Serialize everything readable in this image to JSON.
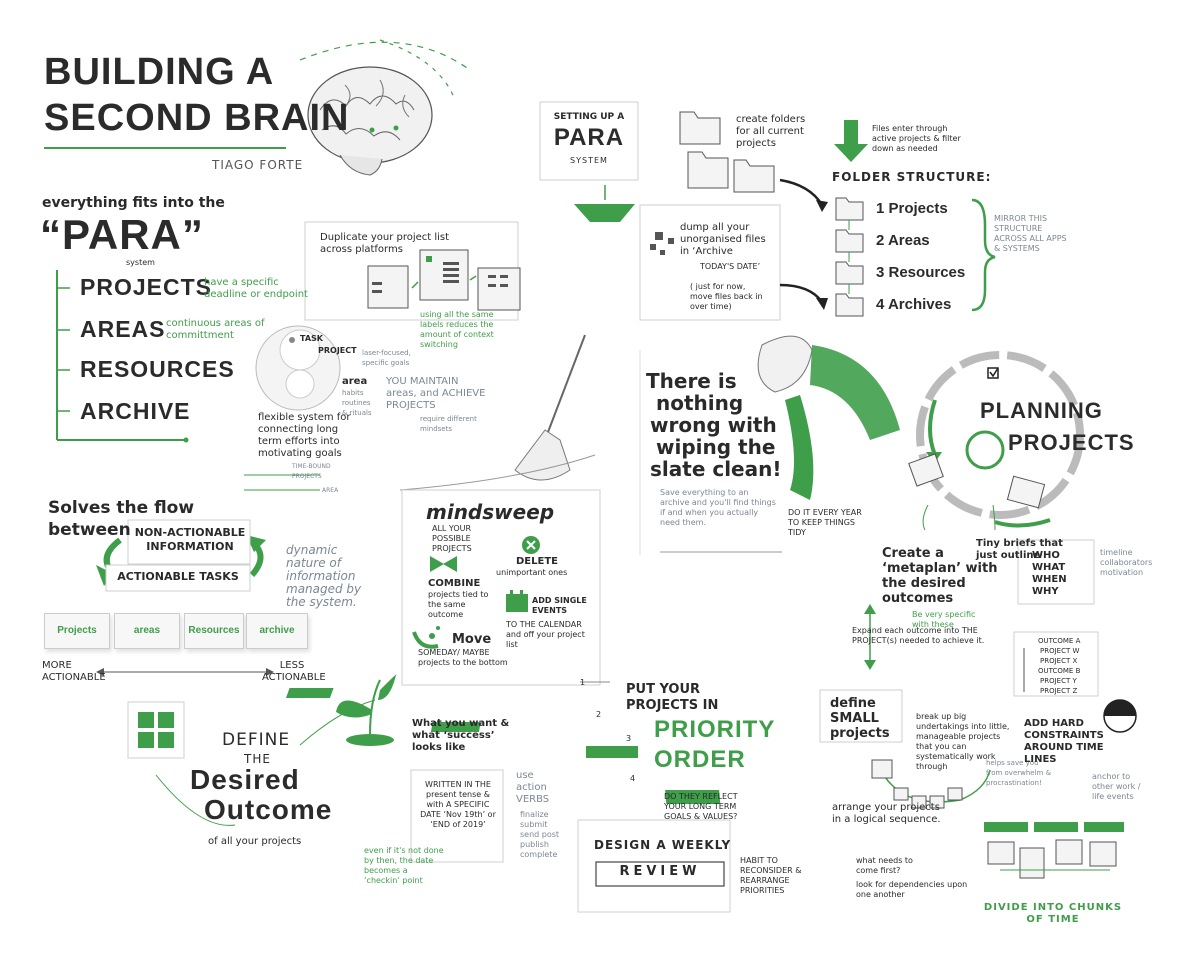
{
  "header": {
    "title_line1": "BUILDING A",
    "title_line2": "SECOND BRAIN",
    "author": "TIAGO FORTE"
  },
  "para": {
    "intro": "everything fits into the",
    "acronym": "“PARA”",
    "system_label": "system",
    "items": [
      {
        "label": "PROJECTS",
        "note": "have a specific deadline or endpoint"
      },
      {
        "label": "AREAS",
        "note": "continuous areas of committment"
      },
      {
        "label": "RESOURCES",
        "note": ""
      },
      {
        "label": "ARCHIVE",
        "note": ""
      }
    ]
  },
  "duplicate": {
    "text": "Duplicate your project list across platforms",
    "note": "using all the same labels reduces the amount of context switching"
  },
  "task_diagram": {
    "task": "TASK",
    "project": "PROJECT",
    "project_note": "laser-focused, specific goals",
    "area": "area",
    "area_note": "habits routines & rituals",
    "maintain": "YOU MAINTAIN areas, and ACHIEVE PROJECTS",
    "maintain_note": "require different mindsets",
    "flexible": "flexible system for connecting long term efforts into motivating goals",
    "time_bound": "TIME-BOUND PROJECTS",
    "area_small": "AREA"
  },
  "flow": {
    "heading_line1": "Solves the flow",
    "heading_line2": "between",
    "non_actionable": "NON-ACTIONABLE INFORMATION",
    "actionable": "ACTIONABLE TASKS",
    "dynamic": "dynamic nature of information managed by the system.",
    "buttons": [
      "Projects",
      "areas",
      "Resources",
      "archive"
    ],
    "more": "MORE ACTIONABLE",
    "less": "LESS ACTIONABLE"
  },
  "mindsweep": {
    "title": "mindsweep",
    "subtitle": "ALL YOUR POSSIBLE PROJECTS",
    "delete": "DELETE",
    "delete_note": "unimportant ones",
    "combine": "COMBINE",
    "combine_note": "projects tied to the same outcome",
    "add": "ADD SINGLE EVENTS",
    "add_note": "TO THE CALENDAR and off your project list",
    "move": "Move",
    "move_note": "SOMEDAY/ MAYBE projects to the bottom"
  },
  "para_setup": {
    "line1": "SETTING UP A",
    "line2": "PARA",
    "line3": "SYSTEM",
    "create_folders": "create folders for all current projects",
    "files_enter": "Files enter through active projects & filter down as needed",
    "folder_structure": "FOLDER STRUCTURE:",
    "folders": [
      "1 Projects",
      "2 Areas",
      "3 Resources",
      "4 Archives"
    ],
    "mirror": "MIRROR THIS STRUCTURE ACROSS ALL APPS & SYSTEMS",
    "dump": "dump all your unorganised files in ‘Archive",
    "dump_date": "TODAY'S DATE’",
    "just_for_now": "( just for now, move files back in over time)"
  },
  "slate": {
    "line1": "There is",
    "line2": "nothing",
    "line3": "wrong with",
    "line4": "wiping the",
    "line5": "slate clean!",
    "note": "Save everything to an archive and you'll find things if and when you actually need them.",
    "yearly": "DO IT EVERY YEAR TO KEEP THINGS TIDY"
  },
  "planning": {
    "line1": "PLANNING",
    "line2": "PROJECTS",
    "metaplan": "Create a ‘metaplan’ with the desired outcomes",
    "metaplan_note": "Be very specific with these",
    "briefs": "Tiny briefs that just outline",
    "who": "WHO WHAT WHEN WHY",
    "timeline": "timeline collaborators motivation",
    "expand": "Expand each outcome into THE PROJECT(s) needed to achieve it.",
    "outcome_a": "OUTCOME A",
    "proj_w": "PROJECT W",
    "proj_x": "PROJECT X",
    "outcome_b": "OUTCOME B",
    "proj_y": "PROJECT Y",
    "proj_z": "PROJECT Z",
    "define_small": "define SMALL projects",
    "break_up": "break up big undertakings into little, manageable projects that you can systematically work through",
    "helps": "helps save you from overwhelm & procrastination!",
    "constraints": "ADD HARD CONSTRAINTS AROUND TIME LINES",
    "anchor": "anchor to other work / life events",
    "arrange": "arrange your projects in a logical sequence.",
    "bullet1": "what needs to come first?",
    "bullet2": "look for dependencies upon one another",
    "divide": "DIVIDE INTO CHUNKS OF TIME"
  },
  "outcome": {
    "define": "DEFINE",
    "the": "THE",
    "desired": "Desired",
    "outcome": "Outcome",
    "of_all": "of all your projects",
    "what_you_want": "What you want & what ‘success’ looks like",
    "written": "WRITTEN IN THE present tense & with A SPECIFIC DATE ‘Nov 19th’ or ‘END of 2019’",
    "use_action": "use action VERBS",
    "verbs": "finalize submit send post publish complete",
    "even_if": "even if it's not done by then, the date becomes a ‘checkin’ point"
  },
  "priority": {
    "put": "PUT YOUR PROJECTS IN",
    "priority": "PRIORITY",
    "order": "ORDER",
    "steps": [
      "1",
      "2",
      "3",
      "4"
    ],
    "reflect": "DO THEY REFLECT YOUR LONG TERM GOALS & VALUES?",
    "design": "DESIGN A WEEKLY",
    "review": "REVIEW",
    "habit": "HABIT TO RECONSIDER & REARRANGE PRIORITIES"
  }
}
